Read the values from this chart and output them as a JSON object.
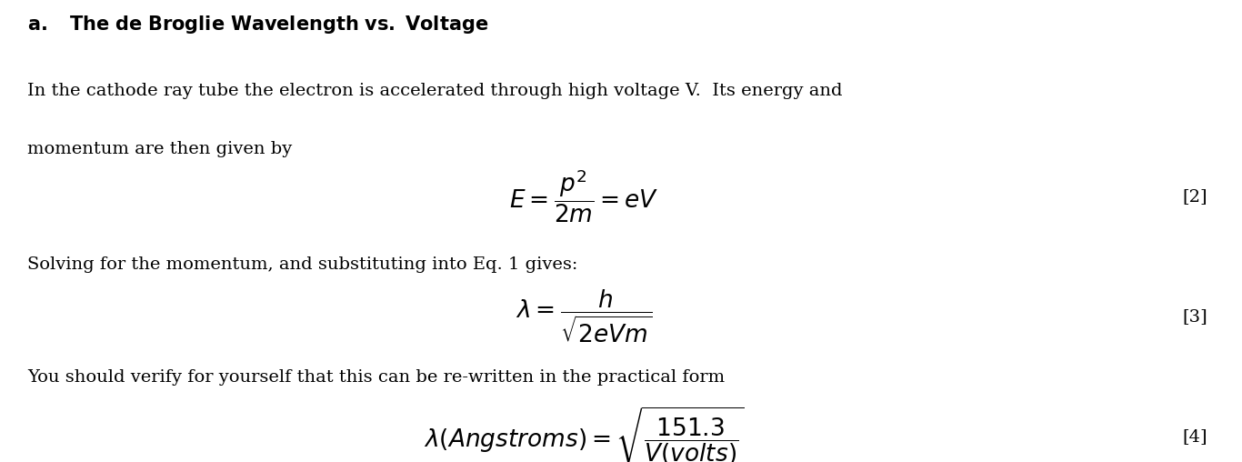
{
  "bg_color": "#ffffff",
  "text_color": "#000000",
  "title_a": "a.",
  "title_rest": "The de Broglie Wavelength vs. Voltage",
  "para1_line1": "In the cathode ray tube the electron is accelerated through high voltage V.  Its energy and",
  "para1_line2": "momentum are then given by",
  "eq2_label": "[2]",
  "para2": "Solving for the momentum, and substituting into Eq. 1 gives:",
  "eq3_label": "[3]",
  "para3": "You should verify for yourself that this can be re-written in the practical form",
  "eq4_label": "[4]",
  "fontsize_title": 15,
  "fontsize_body": 14,
  "fontsize_eq": 16
}
